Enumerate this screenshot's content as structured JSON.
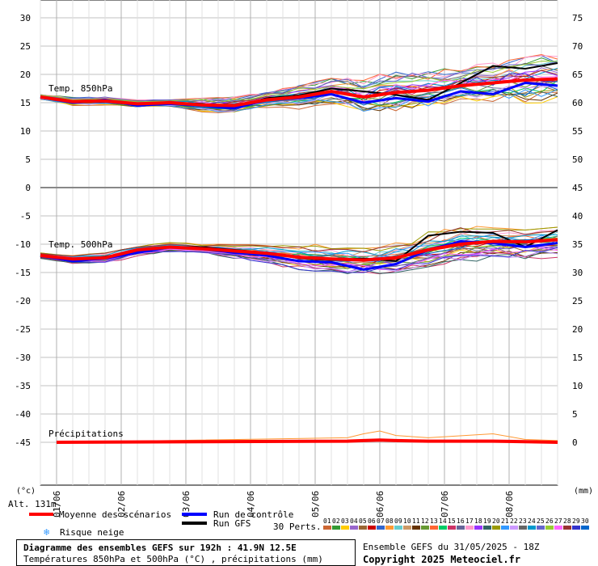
{
  "chart_data": {
    "type": "line",
    "title": "Diagramme des ensembles GEFS sur 192h : 41.9N 12.5E",
    "subtitle": "Températures 850hPa et 500hPa (°C) , précipitations (mm)",
    "run_info": "Ensemble GEFS du 31/05/2025 - 18Z",
    "copyright": "Copyright 2025 Meteociel.fr",
    "altitude": "Alt. 131m",
    "unit_left": "(°c)",
    "unit_right": "(mm)",
    "x_ticks": [
      "01/06",
      "02/06",
      "03/06",
      "04/06",
      "05/06",
      "06/06",
      "07/06",
      "08/06"
    ],
    "xlim": [
      0,
      192
    ],
    "y_left_ticks": [
      30,
      25,
      20,
      15,
      10,
      5,
      0,
      -5,
      -10,
      -15,
      -20,
      -25,
      -30,
      -35,
      -40,
      -45
    ],
    "y_right_ticks_top": [
      75,
      70,
      65,
      60,
      55,
      50
    ],
    "y_right_ticks_bottom": [
      45,
      40,
      35,
      30,
      25,
      20,
      15,
      10,
      5,
      0
    ],
    "panels": [
      {
        "label": "Temp. 850hPa",
        "ylim": [
          0,
          33
        ]
      },
      {
        "label": "Temp. 500hPa",
        "ylim": [
          -57,
          0
        ]
      }
    ],
    "series_labels": {
      "mean": "Moyenne des scénarios",
      "control": "Run de contrôle",
      "gfs": "Run GFS",
      "snow": "Risque neige",
      "perts": "30 Perts."
    },
    "t850": {
      "x": [
        0,
        12,
        24,
        36,
        48,
        60,
        72,
        84,
        96,
        108,
        120,
        132,
        144,
        156,
        168,
        180,
        192
      ],
      "mean": [
        16,
        15.2,
        15.3,
        14.8,
        15,
        14.6,
        14.5,
        15.5,
        16,
        17,
        16,
        16.8,
        17.2,
        18,
        18.5,
        19,
        19.2
      ],
      "control": [
        16,
        15,
        15.5,
        14.5,
        14.8,
        14.5,
        14,
        15.5,
        15.8,
        16.5,
        15,
        15.8,
        15.2,
        17,
        16.5,
        18.5,
        18
      ],
      "gfs": [
        16,
        15,
        15.2,
        14.6,
        15,
        14.8,
        14.2,
        15.8,
        16.3,
        17.5,
        17,
        16.4,
        15.5,
        18.5,
        21.5,
        21,
        22
      ],
      "spread_min": [
        15.5,
        14.5,
        14.5,
        14,
        14,
        13,
        12.5,
        14,
        13.5,
        14.5,
        13.5,
        13.5,
        13.5,
        14.5,
        14.5,
        13.5,
        14.5
      ],
      "spread_max": [
        16.5,
        16,
        16,
        15.5,
        15.5,
        15.8,
        16,
        17,
        18,
        19.5,
        20.5,
        21,
        20.5,
        21.5,
        22,
        23,
        24
      ]
    },
    "t500": {
      "x": [
        0,
        12,
        24,
        36,
        48,
        60,
        72,
        84,
        96,
        108,
        120,
        132,
        144,
        156,
        168,
        180,
        192
      ],
      "mean": [
        -12,
        -12.6,
        -12.4,
        -11,
        -10.5,
        -10.8,
        -11.2,
        -11.6,
        -12.3,
        -12.6,
        -12.8,
        -12.4,
        -11,
        -10,
        -9.5,
        -9.6,
        -9.2
      ],
      "control": [
        -12,
        -13,
        -12.5,
        -11.5,
        -10.5,
        -10.8,
        -11.5,
        -12,
        -13,
        -13.2,
        -14.5,
        -13.5,
        -11,
        -9.5,
        -9.8,
        -10.5,
        -9.8
      ],
      "gfs": [
        -12,
        -12.8,
        -12.2,
        -11.2,
        -10.5,
        -10.5,
        -11,
        -11.5,
        -12.5,
        -12.8,
        -12.5,
        -13,
        -8.5,
        -7.8,
        -8,
        -10.5,
        -7.5
      ],
      "spread_min": [
        -12.5,
        -13.5,
        -13.5,
        -12.5,
        -11.5,
        -11.5,
        -12.5,
        -13.5,
        -14.5,
        -15,
        -15.5,
        -15,
        -14,
        -13,
        -13,
        -13.5,
        -12.5
      ],
      "spread_max": [
        -11.5,
        -12,
        -11.5,
        -10.5,
        -9.5,
        -10,
        -10,
        -10,
        -10,
        -10,
        -10.5,
        -9.5,
        -7.5,
        -6.5,
        -7,
        -7.5,
        -7
      ]
    },
    "precip": {
      "x": [
        6,
        114,
        120,
        126,
        132,
        144,
        168,
        180,
        192
      ],
      "mean": [
        0,
        0.2,
        0.3,
        0.4,
        0.3,
        0.2,
        0.2,
        0.1,
        0
      ],
      "max": [
        0,
        0.8,
        1.5,
        2,
        1.2,
        0.8,
        1.5,
        0.5,
        0.3
      ]
    }
  },
  "member_labels": [
    "01",
    "02",
    "03",
    "04",
    "05",
    "06",
    "07",
    "08",
    "09",
    "10",
    "11",
    "12",
    "13",
    "14",
    "15",
    "16",
    "17",
    "18",
    "19",
    "20",
    "21",
    "22",
    "23",
    "24",
    "25",
    "26",
    "27",
    "28",
    "29",
    "30"
  ],
  "member_colors": [
    "#cc6633",
    "#339933",
    "#ffcc00",
    "#9966cc",
    "#996633",
    "#cc0000",
    "#3366cc",
    "#ff9933",
    "#66cccc",
    "#cc9966",
    "#663300",
    "#669933",
    "#ff6633",
    "#00cc66",
    "#cc3366",
    "#666699",
    "#ff99cc",
    "#9933ff",
    "#336666",
    "#999900",
    "#3399ff",
    "#cc99ff",
    "#666666",
    "#0099cc",
    "#6666cc",
    "#99cc33",
    "#ff66ff",
    "#993333",
    "#3333cc",
    "#0066cc"
  ],
  "colors": {
    "mean": "#ff0000",
    "control": "#0000ff",
    "gfs": "#000000",
    "snow": "#3399ff"
  }
}
